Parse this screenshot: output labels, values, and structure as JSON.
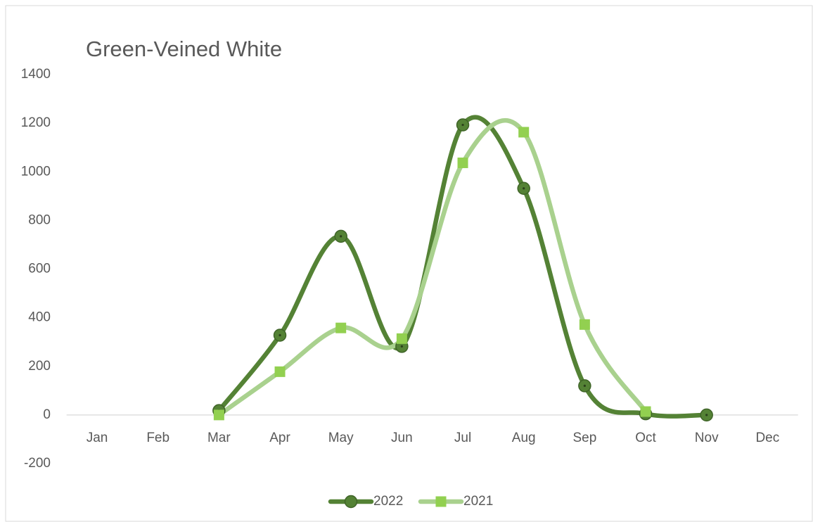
{
  "chart_data": {
    "type": "line",
    "title": "Green-Veined White",
    "categories": [
      "Jan",
      "Feb",
      "Mar",
      "Apr",
      "May",
      "Jun",
      "Jul",
      "Aug",
      "Sep",
      "Oct",
      "Nov",
      "Dec"
    ],
    "series": [
      {
        "name": "2022",
        "color": "#548235",
        "marker": "circle",
        "values": [
          null,
          null,
          18,
          328,
          735,
          282,
          1193,
          932,
          120,
          5,
          0,
          null
        ]
      },
      {
        "name": "2021",
        "color": "#a9d18e",
        "marker_color": "#92d050",
        "marker": "square",
        "values": [
          null,
          null,
          0,
          178,
          358,
          314,
          1037,
          1163,
          372,
          14,
          null,
          null
        ]
      }
    ],
    "ylim": [
      -200,
      1400
    ],
    "yticks": [
      -200,
      0,
      200,
      400,
      600,
      800,
      1000,
      1200,
      1400
    ],
    "grid": false,
    "smooth": true,
    "legend": "bottom"
  }
}
